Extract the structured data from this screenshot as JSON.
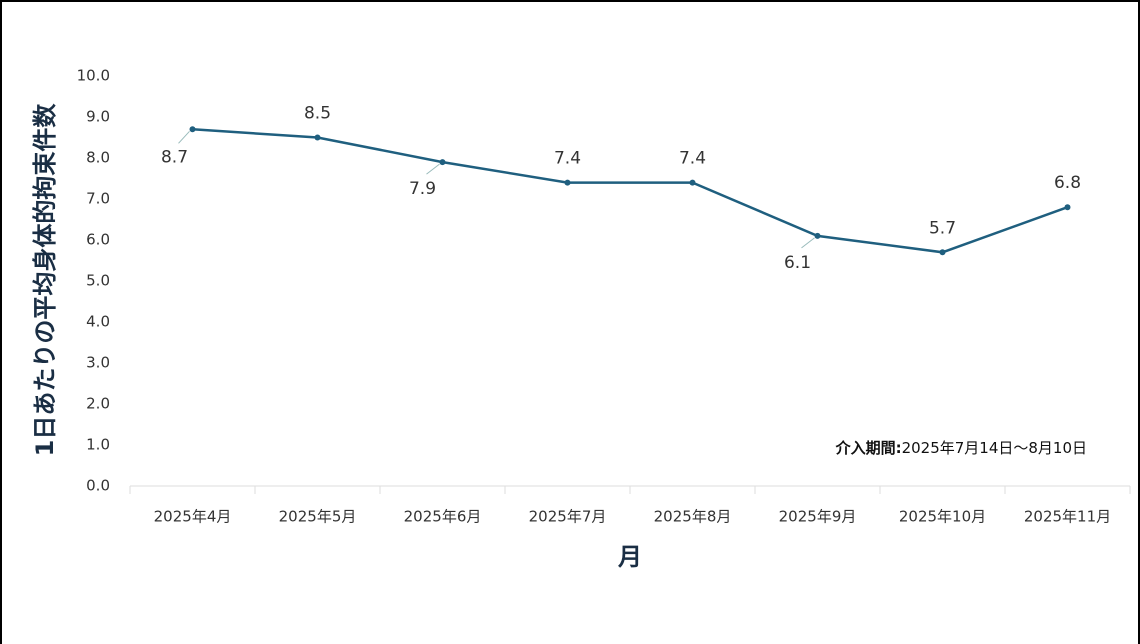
{
  "chart_data": {
    "type": "line",
    "y_label": "1日あたりの平均身体的拘束件数",
    "x_label": "月",
    "annotation": {
      "label": "介入期間:",
      "text": "2025年7月14日～8月10日"
    },
    "categories": [
      "2025年4月",
      "2025年5月",
      "2025年6月",
      "2025年7月",
      "2025年8月",
      "2025年9月",
      "2025年10月",
      "2025年11月"
    ],
    "series": [
      {
        "name": "1日あたりの平均身体的拘束件数",
        "color": "#1f5f7f",
        "values": [
          8.7,
          8.5,
          7.9,
          7.4,
          7.4,
          6.1,
          5.7,
          6.8
        ]
      }
    ],
    "ylim": [
      0,
      10
    ],
    "yticks": [
      {
        "value": 0,
        "label": "0.0"
      },
      {
        "value": 1,
        "label": "1.0"
      },
      {
        "value": 2,
        "label": "2.0"
      },
      {
        "value": 3,
        "label": "3.0"
      },
      {
        "value": 4,
        "label": "4.0"
      },
      {
        "value": 5,
        "label": "5.0"
      },
      {
        "value": 6,
        "label": "6.0"
      },
      {
        "value": 7,
        "label": "7.0"
      },
      {
        "value": 8,
        "label": "8.0"
      },
      {
        "value": 9,
        "label": "9.0"
      },
      {
        "value": 10,
        "label": "10.0"
      }
    ],
    "grid": false
  }
}
